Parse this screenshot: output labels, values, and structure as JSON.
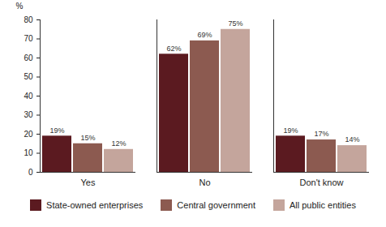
{
  "chart_data": {
    "type": "bar",
    "categories": [
      "Yes",
      "No",
      "Don't know"
    ],
    "series": [
      {
        "name": "State-owned enterprises",
        "color": "#5b1a20",
        "values": [
          19,
          62,
          19
        ],
        "value_labels": [
          "19%",
          "62%",
          "19%"
        ]
      },
      {
        "name": "Central government",
        "color": "#8c5a50",
        "values": [
          15,
          69,
          17
        ],
        "value_labels": [
          "15%",
          "69%",
          "17%"
        ]
      },
      {
        "name": "All public entities",
        "color": "#c4a59c",
        "values": [
          12,
          75,
          14
        ],
        "value_labels": [
          "12%",
          "75%",
          "14%"
        ]
      }
    ],
    "y_label": "%",
    "ylim": [
      0,
      80
    ],
    "yticks": [
      0,
      10,
      20,
      30,
      40,
      50,
      60,
      70,
      80
    ],
    "grid": false,
    "data_labels": true,
    "legend": "bottom"
  }
}
